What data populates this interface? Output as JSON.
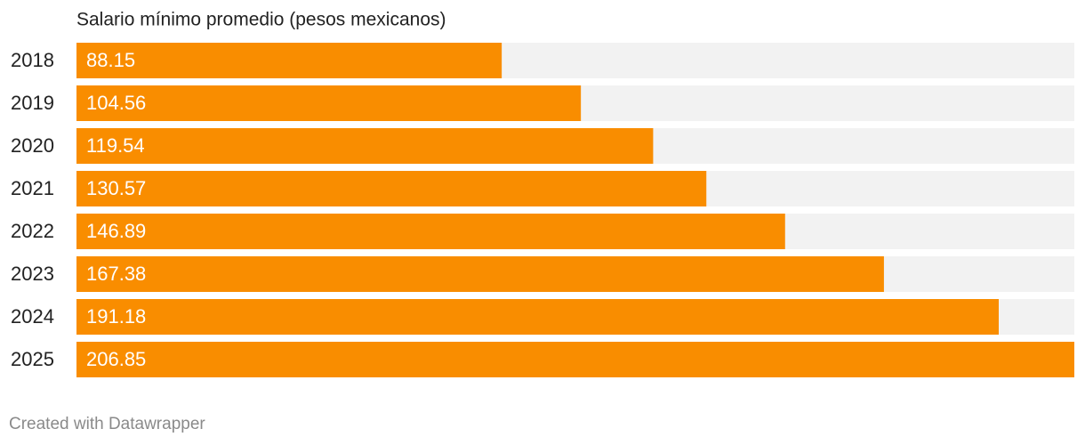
{
  "chart_data": {
    "type": "bar",
    "orientation": "horizontal",
    "title": "Salario mínimo promedio (pesos mexicanos)",
    "categories": [
      "2018",
      "2019",
      "2020",
      "2021",
      "2022",
      "2023",
      "2024",
      "2025"
    ],
    "values": [
      88.15,
      104.56,
      119.54,
      130.57,
      146.89,
      167.38,
      191.18,
      206.85
    ],
    "color": "#f98d00",
    "track_color": "#f2f2f2",
    "xlim": [
      0,
      206.85
    ],
    "credit": "Created with Datawrapper"
  }
}
